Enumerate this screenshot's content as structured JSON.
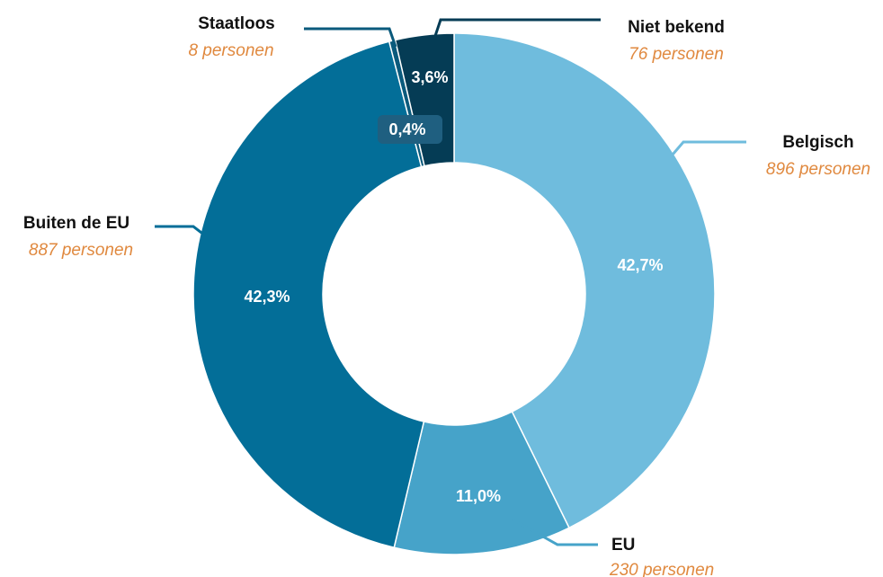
{
  "chart_data": {
    "type": "pie",
    "donut": true,
    "unit": "personen",
    "slices": [
      {
        "label": "Belgisch",
        "count": 896,
        "percent_label": "42,7%",
        "count_label": "896 personen",
        "color": "#6fbcdd"
      },
      {
        "label": "EU",
        "count": 230,
        "percent_label": "11,0%",
        "count_label": "230 personen",
        "color": "#46a3c9"
      },
      {
        "label": "Buiten de EU",
        "count": 887,
        "percent_label": "42,3%",
        "count_label": "887 personen",
        "color": "#036e98"
      },
      {
        "label": "Staatloos",
        "count": 8,
        "percent_label": "0,4%",
        "count_label": "8 personen",
        "color": "#0a5a7c"
      },
      {
        "label": "Niet bekend",
        "count": 76,
        "percent_label": "3,6%",
        "count_label": "76 personen",
        "color": "#053c55"
      }
    ],
    "count_color": "#e0893f"
  }
}
